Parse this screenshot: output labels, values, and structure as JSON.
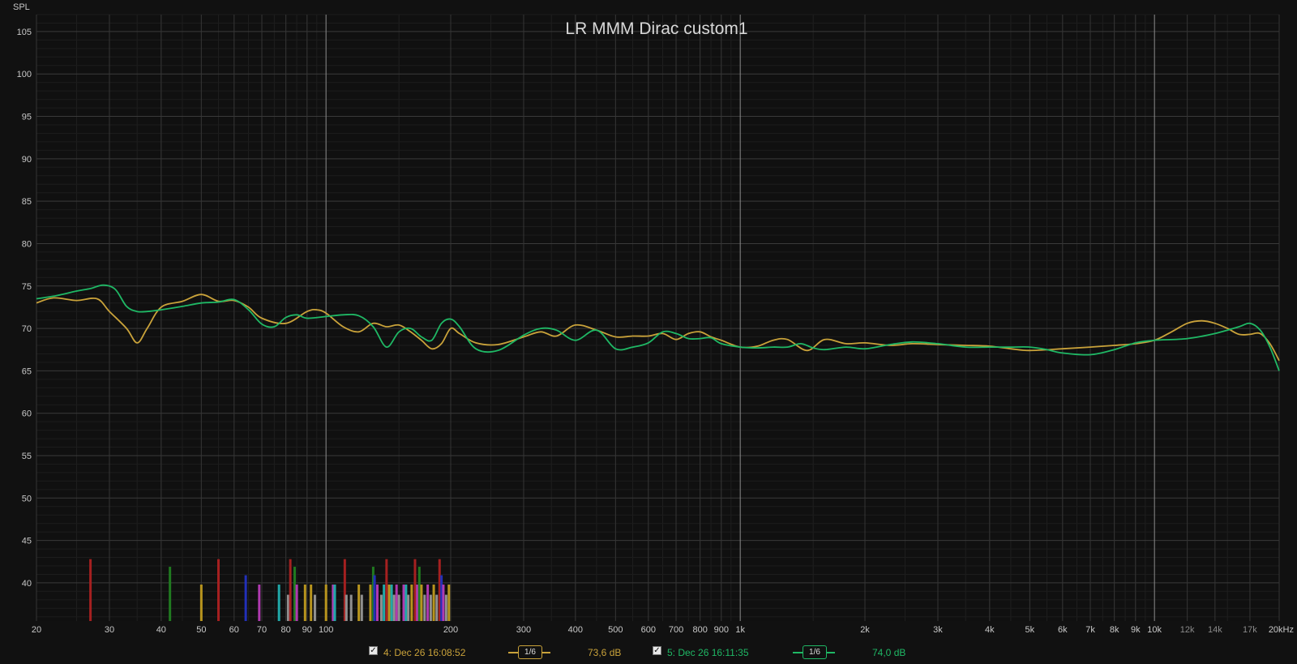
{
  "chart_data": {
    "type": "line",
    "title": "LR MMM Dirac custom1",
    "ylabel": "SPL",
    "xlabel": "",
    "x_scale": "log",
    "xlim": [
      20,
      20000
    ],
    "ylim": [
      35.5,
      107
    ],
    "grid": true,
    "y_ticks": [
      "105",
      "100",
      "95",
      "90",
      "85",
      "80",
      "75",
      "70",
      "65",
      "60",
      "55",
      "50",
      "45",
      "40"
    ],
    "x_ticks": [
      {
        "v": 20,
        "label": "20"
      },
      {
        "v": 30,
        "label": "30"
      },
      {
        "v": 40,
        "label": "40"
      },
      {
        "v": 50,
        "label": "50"
      },
      {
        "v": 60,
        "label": "60"
      },
      {
        "v": 70,
        "label": "70"
      },
      {
        "v": 80,
        "label": "80"
      },
      {
        "v": 90,
        "label": "90"
      },
      {
        "v": 100,
        "label": "100"
      },
      {
        "v": 200,
        "label": "200"
      },
      {
        "v": 300,
        "label": "300"
      },
      {
        "v": 400,
        "label": "400"
      },
      {
        "v": 500,
        "label": "500"
      },
      {
        "v": 600,
        "label": "600"
      },
      {
        "v": 700,
        "label": "700"
      },
      {
        "v": 800,
        "label": "800"
      },
      {
        "v": 900,
        "label": "900"
      },
      {
        "v": 1000,
        "label": "1k"
      },
      {
        "v": 2000,
        "label": "2k"
      },
      {
        "v": 3000,
        "label": "3k"
      },
      {
        "v": 4000,
        "label": "4k"
      },
      {
        "v": 5000,
        "label": "5k"
      },
      {
        "v": 6000,
        "label": "6k"
      },
      {
        "v": 7000,
        "label": "7k"
      },
      {
        "v": 8000,
        "label": "8k"
      },
      {
        "v": 9000,
        "label": "9k"
      },
      {
        "v": 10000,
        "label": "10k"
      },
      {
        "v": 12000,
        "label": "12k",
        "dim": true
      },
      {
        "v": 14000,
        "label": "14k",
        "dim": true
      },
      {
        "v": 17000,
        "label": "17k",
        "dim": true
      },
      {
        "v": 20000,
        "label": "20kHz"
      }
    ],
    "series": [
      {
        "name": "4: Dec 26 16:08:52",
        "color": "#c9a23a",
        "points": [
          [
            20,
            73
          ],
          [
            22,
            73.6
          ],
          [
            25,
            73.3
          ],
          [
            28,
            73.5
          ],
          [
            30,
            72
          ],
          [
            33,
            70
          ],
          [
            35,
            68.3
          ],
          [
            37,
            70
          ],
          [
            40,
            72.5
          ],
          [
            45,
            73.2
          ],
          [
            50,
            74
          ],
          [
            55,
            73.2
          ],
          [
            60,
            73.3
          ],
          [
            65,
            72.5
          ],
          [
            70,
            71.2
          ],
          [
            80,
            70.6
          ],
          [
            90,
            72
          ],
          [
            95,
            72.2
          ],
          [
            100,
            71.8
          ],
          [
            110,
            70.2
          ],
          [
            120,
            69.6
          ],
          [
            130,
            70.6
          ],
          [
            140,
            70.2
          ],
          [
            150,
            70.4
          ],
          [
            160,
            69.6
          ],
          [
            170,
            68.6
          ],
          [
            180,
            67.6
          ],
          [
            190,
            68.2
          ],
          [
            200,
            70
          ],
          [
            210,
            69.4
          ],
          [
            230,
            68.3
          ],
          [
            260,
            68.1
          ],
          [
            300,
            69
          ],
          [
            330,
            69.6
          ],
          [
            360,
            69.1
          ],
          [
            400,
            70.4
          ],
          [
            450,
            69.8
          ],
          [
            500,
            69
          ],
          [
            550,
            69.1
          ],
          [
            600,
            69.1
          ],
          [
            650,
            69.4
          ],
          [
            700,
            68.7
          ],
          [
            750,
            69.4
          ],
          [
            800,
            69.6
          ],
          [
            850,
            69
          ],
          [
            900,
            68.6
          ],
          [
            1000,
            67.8
          ],
          [
            1100,
            67.9
          ],
          [
            1200,
            68.6
          ],
          [
            1300,
            68.7
          ],
          [
            1450,
            67.4
          ],
          [
            1600,
            68.7
          ],
          [
            1800,
            68.2
          ],
          [
            2000,
            68.3
          ],
          [
            2300,
            68
          ],
          [
            2600,
            68.2
          ],
          [
            3000,
            68.1
          ],
          [
            3500,
            68
          ],
          [
            4000,
            67.9
          ],
          [
            4500,
            67.6
          ],
          [
            5000,
            67.4
          ],
          [
            6000,
            67.6
          ],
          [
            7000,
            67.8
          ],
          [
            8000,
            68
          ],
          [
            9000,
            68.2
          ],
          [
            10000,
            68.6
          ],
          [
            11000,
            69.6
          ],
          [
            12000,
            70.6
          ],
          [
            13000,
            70.9
          ],
          [
            14000,
            70.6
          ],
          [
            15000,
            70
          ],
          [
            16000,
            69.3
          ],
          [
            17000,
            69.3
          ],
          [
            18000,
            69.4
          ],
          [
            19000,
            68.2
          ],
          [
            20000,
            66.2
          ]
        ]
      },
      {
        "name": "5: Dec 26 16:11:35",
        "color": "#1fb865",
        "points": [
          [
            20,
            73.5
          ],
          [
            22,
            73.8
          ],
          [
            25,
            74.4
          ],
          [
            27,
            74.7
          ],
          [
            29,
            75.1
          ],
          [
            31,
            74.6
          ],
          [
            33,
            72.6
          ],
          [
            35,
            72
          ],
          [
            37,
            72
          ],
          [
            40,
            72.2
          ],
          [
            45,
            72.6
          ],
          [
            50,
            73
          ],
          [
            55,
            73.1
          ],
          [
            60,
            73.4
          ],
          [
            65,
            72.2
          ],
          [
            70,
            70.5
          ],
          [
            75,
            70.2
          ],
          [
            80,
            71.3
          ],
          [
            85,
            71.6
          ],
          [
            90,
            71.2
          ],
          [
            100,
            71.4
          ],
          [
            110,
            71.6
          ],
          [
            120,
            71.5
          ],
          [
            130,
            70.2
          ],
          [
            140,
            67.8
          ],
          [
            150,
            69.6
          ],
          [
            160,
            70
          ],
          [
            170,
            69
          ],
          [
            180,
            68.6
          ],
          [
            190,
            70.6
          ],
          [
            200,
            71.1
          ],
          [
            210,
            70.2
          ],
          [
            230,
            67.6
          ],
          [
            260,
            67.4
          ],
          [
            300,
            69.2
          ],
          [
            330,
            70
          ],
          [
            360,
            69.8
          ],
          [
            400,
            68.6
          ],
          [
            450,
            69.8
          ],
          [
            500,
            67.6
          ],
          [
            550,
            67.8
          ],
          [
            600,
            68.3
          ],
          [
            650,
            69.6
          ],
          [
            700,
            69.4
          ],
          [
            750,
            68.8
          ],
          [
            800,
            68.8
          ],
          [
            850,
            68.9
          ],
          [
            900,
            68.2
          ],
          [
            1000,
            67.8
          ],
          [
            1100,
            67.7
          ],
          [
            1200,
            67.8
          ],
          [
            1300,
            67.8
          ],
          [
            1400,
            68.2
          ],
          [
            1500,
            67.7
          ],
          [
            1600,
            67.5
          ],
          [
            1800,
            67.8
          ],
          [
            2000,
            67.6
          ],
          [
            2300,
            68.1
          ],
          [
            2600,
            68.4
          ],
          [
            3000,
            68.2
          ],
          [
            3500,
            67.8
          ],
          [
            4000,
            67.8
          ],
          [
            4500,
            67.8
          ],
          [
            5000,
            67.8
          ],
          [
            5500,
            67.5
          ],
          [
            6000,
            67.1
          ],
          [
            7000,
            66.9
          ],
          [
            8000,
            67.5
          ],
          [
            9000,
            68.3
          ],
          [
            10000,
            68.6
          ],
          [
            12000,
            68.8
          ],
          [
            14000,
            69.4
          ],
          [
            16000,
            70.2
          ],
          [
            17000,
            70.6
          ],
          [
            18000,
            69.8
          ],
          [
            19000,
            67.8
          ],
          [
            20000,
            65
          ]
        ]
      }
    ],
    "bars": [
      {
        "f": 27,
        "top": 42.8,
        "color": "#a52020"
      },
      {
        "f": 42,
        "top": 41.9,
        "color": "#207a20"
      },
      {
        "f": 50,
        "top": 39.8,
        "color": "#b8951e"
      },
      {
        "f": 55,
        "top": 42.8,
        "color": "#a52020"
      },
      {
        "f": 64,
        "top": 40.9,
        "color": "#2230b8"
      },
      {
        "f": 69,
        "top": 39.8,
        "color": "#b03ab0"
      },
      {
        "f": 77,
        "top": 39.8,
        "color": "#20a8a8"
      },
      {
        "f": 81,
        "top": 38.6,
        "color": "#909090"
      },
      {
        "f": 82,
        "top": 42.8,
        "color": "#a52020"
      },
      {
        "f": 84,
        "top": 41.9,
        "color": "#207a20"
      },
      {
        "f": 85,
        "top": 39.8,
        "color": "#b03ab0"
      },
      {
        "f": 89,
        "top": 39.8,
        "color": "#b8951e"
      },
      {
        "f": 92,
        "top": 39.8,
        "color": "#b8951e"
      },
      {
        "f": 94,
        "top": 38.6,
        "color": "#909090"
      },
      {
        "f": 100,
        "top": 39.8,
        "color": "#b8951e"
      },
      {
        "f": 104,
        "top": 39.8,
        "color": "#b03ab0"
      },
      {
        "f": 105,
        "top": 39.8,
        "color": "#20a8a8"
      },
      {
        "f": 111,
        "top": 42.8,
        "color": "#a52020"
      },
      {
        "f": 112,
        "top": 38.6,
        "color": "#909090"
      },
      {
        "f": 115,
        "top": 38.6,
        "color": "#909090"
      },
      {
        "f": 120,
        "top": 39.8,
        "color": "#b8951e"
      },
      {
        "f": 122,
        "top": 38.6,
        "color": "#909090"
      },
      {
        "f": 128,
        "top": 39.8,
        "color": "#b8951e"
      },
      {
        "f": 130,
        "top": 41.9,
        "color": "#207a20"
      },
      {
        "f": 131,
        "top": 40.9,
        "color": "#2230b8"
      },
      {
        "f": 133,
        "top": 39.8,
        "color": "#b03ab0"
      },
      {
        "f": 136,
        "top": 38.6,
        "color": "#909090"
      },
      {
        "f": 138,
        "top": 39.8,
        "color": "#20a8a8"
      },
      {
        "f": 140,
        "top": 42.8,
        "color": "#a52020"
      },
      {
        "f": 142,
        "top": 39.8,
        "color": "#b8951e"
      },
      {
        "f": 144,
        "top": 39.8,
        "color": "#20a8a8"
      },
      {
        "f": 146,
        "top": 38.6,
        "color": "#909090"
      },
      {
        "f": 148,
        "top": 39.8,
        "color": "#b03ab0"
      },
      {
        "f": 150,
        "top": 38.6,
        "color": "#909090"
      },
      {
        "f": 154,
        "top": 39.8,
        "color": "#b03ab0"
      },
      {
        "f": 156,
        "top": 39.8,
        "color": "#20a8a8"
      },
      {
        "f": 158,
        "top": 38.6,
        "color": "#909090"
      },
      {
        "f": 161,
        "top": 39.8,
        "color": "#b8951e"
      },
      {
        "f": 164,
        "top": 42.8,
        "color": "#a52020"
      },
      {
        "f": 166,
        "top": 39.8,
        "color": "#b03ab0"
      },
      {
        "f": 168,
        "top": 41.9,
        "color": "#207a20"
      },
      {
        "f": 170,
        "top": 39.8,
        "color": "#b8951e"
      },
      {
        "f": 173,
        "top": 38.6,
        "color": "#909090"
      },
      {
        "f": 176,
        "top": 39.8,
        "color": "#b03ab0"
      },
      {
        "f": 179,
        "top": 38.6,
        "color": "#909090"
      },
      {
        "f": 182,
        "top": 39.8,
        "color": "#b8951e"
      },
      {
        "f": 185,
        "top": 38.6,
        "color": "#909090"
      },
      {
        "f": 188,
        "top": 42.8,
        "color": "#a52020"
      },
      {
        "f": 190,
        "top": 40.9,
        "color": "#2230b8"
      },
      {
        "f": 192,
        "top": 39.8,
        "color": "#b03ab0"
      },
      {
        "f": 195,
        "top": 38.6,
        "color": "#909090"
      },
      {
        "f": 198,
        "top": 39.8,
        "color": "#b8951e"
      }
    ]
  },
  "legend": {
    "items": [
      {
        "checkbox": "✓",
        "label": "4: Dec 26 16:08:52",
        "smoothing": "1/6",
        "level": "73,6 dB",
        "color": "#c9a23a"
      },
      {
        "checkbox": "✓",
        "label": "5: Dec 26 16:11:35",
        "smoothing": "1/6",
        "level": "74,0 dB",
        "color": "#1fb865"
      }
    ]
  }
}
